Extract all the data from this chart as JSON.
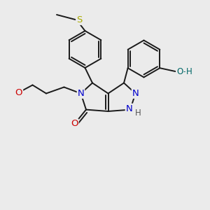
{
  "bg": "#ebebeb",
  "bond_color": "#1a1a1a",
  "lw": 1.4,
  "atom_colors": {
    "N": "#0000cc",
    "O": "#cc0000",
    "S": "#aaaa00",
    "H": "#555555",
    "OH_O": "#006666",
    "OH_H": "#006666"
  },
  "fs": 9.5,
  "fs_small": 8.5
}
